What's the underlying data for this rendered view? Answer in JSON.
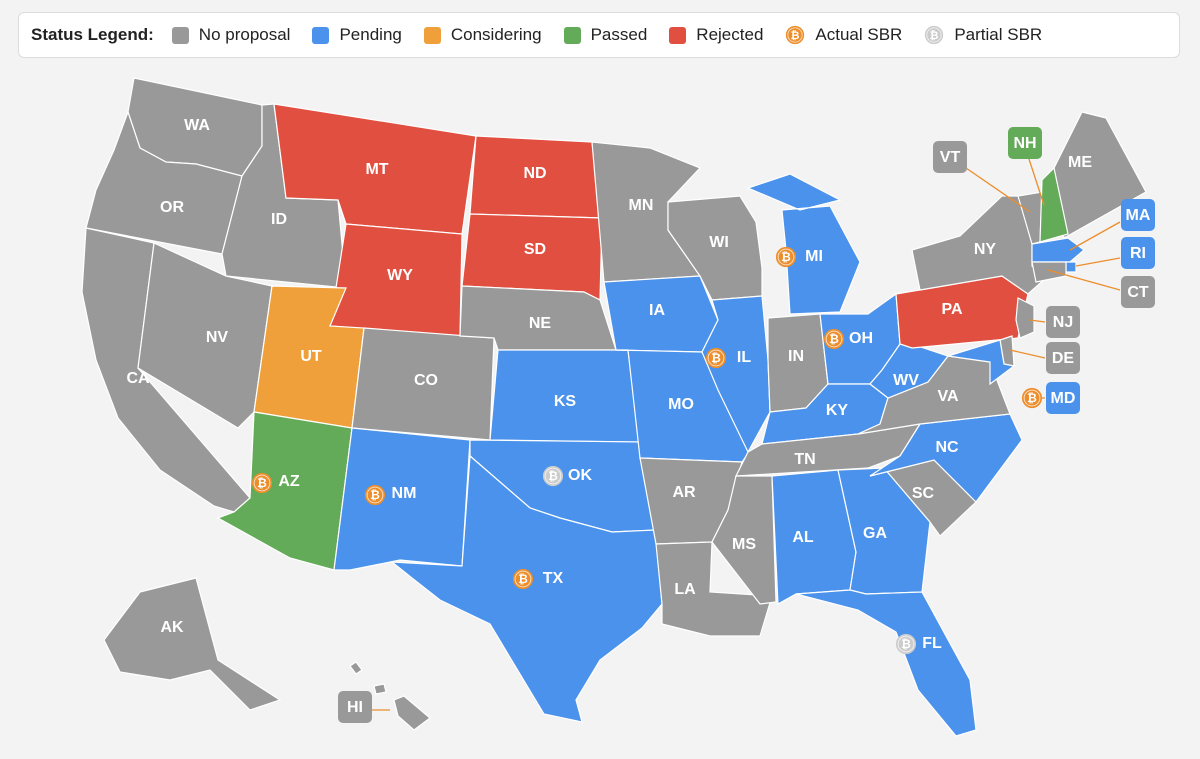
{
  "colors": {
    "none": "#999999",
    "pending": "#4a92ec",
    "considering": "#f0a03a",
    "passed": "#64ab59",
    "rejected": "#e04f3f",
    "actual": "#ec8e2c",
    "partial": "#cccccc"
  },
  "legend": {
    "title": "Status Legend:",
    "items": [
      {
        "label": "No proposal",
        "kind": "swatch",
        "status": "none"
      },
      {
        "label": "Pending",
        "kind": "swatch",
        "status": "pending"
      },
      {
        "label": "Considering",
        "kind": "swatch",
        "status": "considering"
      },
      {
        "label": "Passed",
        "kind": "swatch",
        "status": "passed"
      },
      {
        "label": "Rejected",
        "kind": "swatch",
        "status": "rejected"
      },
      {
        "label": "Actual SBR",
        "kind": "coin",
        "status": "actual"
      },
      {
        "label": "Partial SBR",
        "kind": "coin",
        "status": "partial"
      }
    ]
  },
  "states": {
    "WA": {
      "status": "none"
    },
    "OR": {
      "status": "none"
    },
    "CA": {
      "status": "none"
    },
    "ID": {
      "status": "none"
    },
    "NV": {
      "status": "none"
    },
    "MT": {
      "status": "rejected"
    },
    "WY": {
      "status": "rejected"
    },
    "UT": {
      "status": "considering"
    },
    "AZ": {
      "status": "passed",
      "sbr": "actual"
    },
    "CO": {
      "status": "none"
    },
    "NM": {
      "status": "pending",
      "sbr": "actual"
    },
    "ND": {
      "status": "rejected"
    },
    "SD": {
      "status": "rejected"
    },
    "NE": {
      "status": "none"
    },
    "KS": {
      "status": "pending"
    },
    "OK": {
      "status": "pending",
      "sbr": "partial"
    },
    "TX": {
      "status": "pending",
      "sbr": "actual"
    },
    "MN": {
      "status": "none"
    },
    "IA": {
      "status": "pending"
    },
    "MO": {
      "status": "pending"
    },
    "AR": {
      "status": "none"
    },
    "LA": {
      "status": "none"
    },
    "WI": {
      "status": "none"
    },
    "IL": {
      "status": "pending",
      "sbr": "actual"
    },
    "MI": {
      "status": "pending",
      "sbr": "actual"
    },
    "IN": {
      "status": "none"
    },
    "OH": {
      "status": "pending",
      "sbr": "actual"
    },
    "KY": {
      "status": "pending"
    },
    "TN": {
      "status": "none"
    },
    "MS": {
      "status": "none"
    },
    "AL": {
      "status": "pending"
    },
    "GA": {
      "status": "pending"
    },
    "FL": {
      "status": "pending",
      "sbr": "partial"
    },
    "SC": {
      "status": "none"
    },
    "NC": {
      "status": "pending"
    },
    "VA": {
      "status": "none"
    },
    "WV": {
      "status": "pending"
    },
    "PA": {
      "status": "rejected"
    },
    "NY": {
      "status": "none"
    },
    "ME": {
      "status": "none"
    },
    "VT": {
      "status": "none"
    },
    "NH": {
      "status": "passed"
    },
    "MA": {
      "status": "pending"
    },
    "RI": {
      "status": "pending"
    },
    "CT": {
      "status": "none"
    },
    "NJ": {
      "status": "none"
    },
    "DE": {
      "status": "none"
    },
    "MD": {
      "status": "pending",
      "sbr": "actual"
    },
    "AK": {
      "status": "none"
    },
    "HI": {
      "status": "none"
    }
  }
}
